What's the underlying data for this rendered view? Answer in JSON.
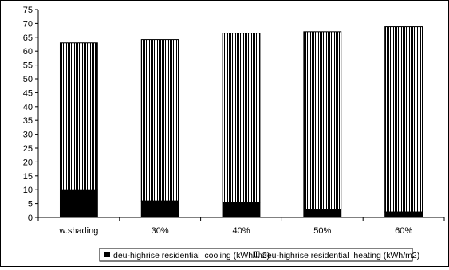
{
  "chart_data": {
    "type": "bar",
    "stacked": true,
    "title": "",
    "xlabel": "",
    "ylabel": "",
    "categories": [
      "w.shading",
      "30%",
      "40%",
      "50%",
      "60%"
    ],
    "ylim": [
      0,
      75
    ],
    "yticks": [
      0,
      5,
      10,
      15,
      20,
      25,
      30,
      35,
      40,
      45,
      50,
      55,
      60,
      65,
      70,
      75
    ],
    "grid": false,
    "legend_position": "bottom",
    "series": [
      {
        "name": "deu-highrise residential  cooling (kWh/m2)",
        "values": [
          10,
          6,
          5.5,
          3,
          2
        ],
        "color": "#000000",
        "pattern": "solid"
      },
      {
        "name": "deu-highrise residential  heating (kWh/m2)",
        "values": [
          53,
          58.2,
          61,
          64,
          66.8
        ],
        "color": "#000000",
        "pattern": "vertical-stripes"
      }
    ]
  }
}
